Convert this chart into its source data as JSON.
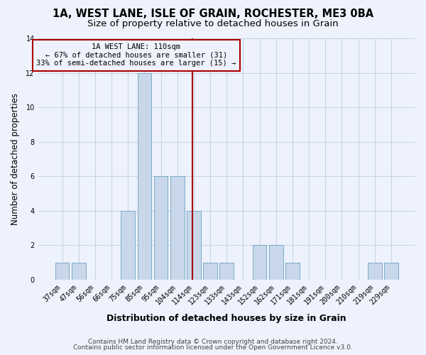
{
  "title1": "1A, WEST LANE, ISLE OF GRAIN, ROCHESTER, ME3 0BA",
  "title2": "Size of property relative to detached houses in Grain",
  "xlabel": "Distribution of detached houses by size in Grain",
  "ylabel": "Number of detached properties",
  "categories": [
    "37sqm",
    "47sqm",
    "56sqm",
    "66sqm",
    "75sqm",
    "85sqm",
    "95sqm",
    "104sqm",
    "114sqm",
    "123sqm",
    "133sqm",
    "143sqm",
    "152sqm",
    "162sqm",
    "171sqm",
    "181sqm",
    "191sqm",
    "200sqm",
    "210sqm",
    "219sqm",
    "229sqm"
  ],
  "values": [
    1,
    1,
    0,
    0,
    4,
    12,
    6,
    6,
    4,
    1,
    1,
    0,
    2,
    2,
    1,
    0,
    0,
    0,
    0,
    1,
    1
  ],
  "bar_color": "#c8d8ea",
  "bar_edge_color": "#7aaac8",
  "vline_x": 8.0,
  "vline_color": "#aa0000",
  "annotation_line1": "1A WEST LANE: 110sqm",
  "annotation_line2": "← 67% of detached houses are smaller (31)",
  "annotation_line3": "33% of semi-detached houses are larger (15) →",
  "annotation_box_edge_color": "#aa0000",
  "ylim": [
    0,
    14
  ],
  "yticks": [
    0,
    2,
    4,
    6,
    8,
    10,
    12,
    14
  ],
  "grid_color": "#c8d4e8",
  "background_color": "#eef2fc",
  "footer1": "Contains HM Land Registry data © Crown copyright and database right 2024.",
  "footer2": "Contains public sector information licensed under the Open Government Licence v3.0.",
  "title1_fontsize": 10.5,
  "title2_fontsize": 9.5,
  "xlabel_fontsize": 9,
  "ylabel_fontsize": 8.5,
  "tick_fontsize": 7,
  "annotation_fontsize": 7.5,
  "footer_fontsize": 6.5
}
